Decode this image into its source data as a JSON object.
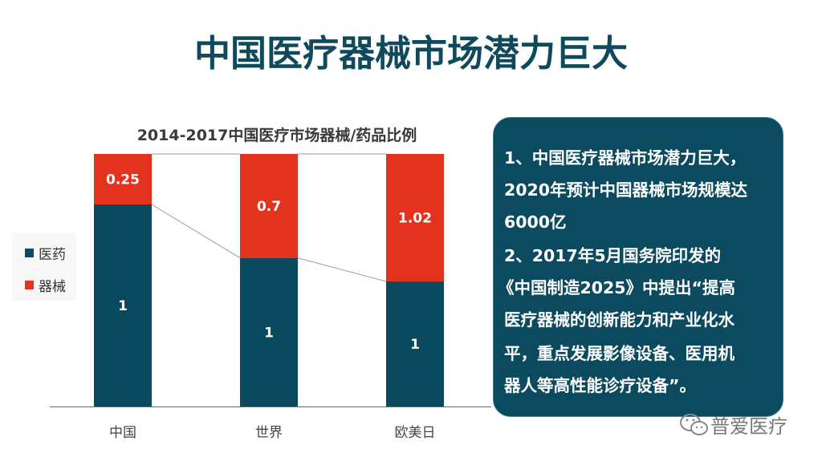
{
  "title": "中国医疗器械市场潜力巨大",
  "chart_data": {
    "type": "bar",
    "stacked": "percent",
    "title": "2014-2017中国医疗市场器械/药品比例",
    "categories": [
      "中国",
      "世界",
      "欧美日"
    ],
    "series": [
      {
        "name": "医药",
        "values": [
          1,
          1,
          1
        ],
        "color": "#0b4a5e"
      },
      {
        "name": "器械",
        "values": [
          0.25,
          0.7,
          1.02
        ],
        "color": "#e3321e"
      }
    ],
    "data_labels": [
      [
        "1",
        "1",
        "1"
      ],
      [
        "0.25",
        "0.7",
        "1.02"
      ]
    ],
    "legend": "left",
    "grid": false,
    "series_lines": true
  },
  "panel": {
    "lines": [
      "1、中国医疗器械市场潜力巨大，",
      "2020年预计中国器械市场规模达",
      "6000亿",
      "2、2017年5月国务院印发的",
      "《中国制造2025》中提出“提高",
      "医疗器械的创新能力和产业化水",
      "平，重点发展影像设备、医用机",
      "器人等高性能诊疗设备”。"
    ]
  },
  "watermark": {
    "text": "普爱医疗",
    "icon": "wechat-icon"
  }
}
